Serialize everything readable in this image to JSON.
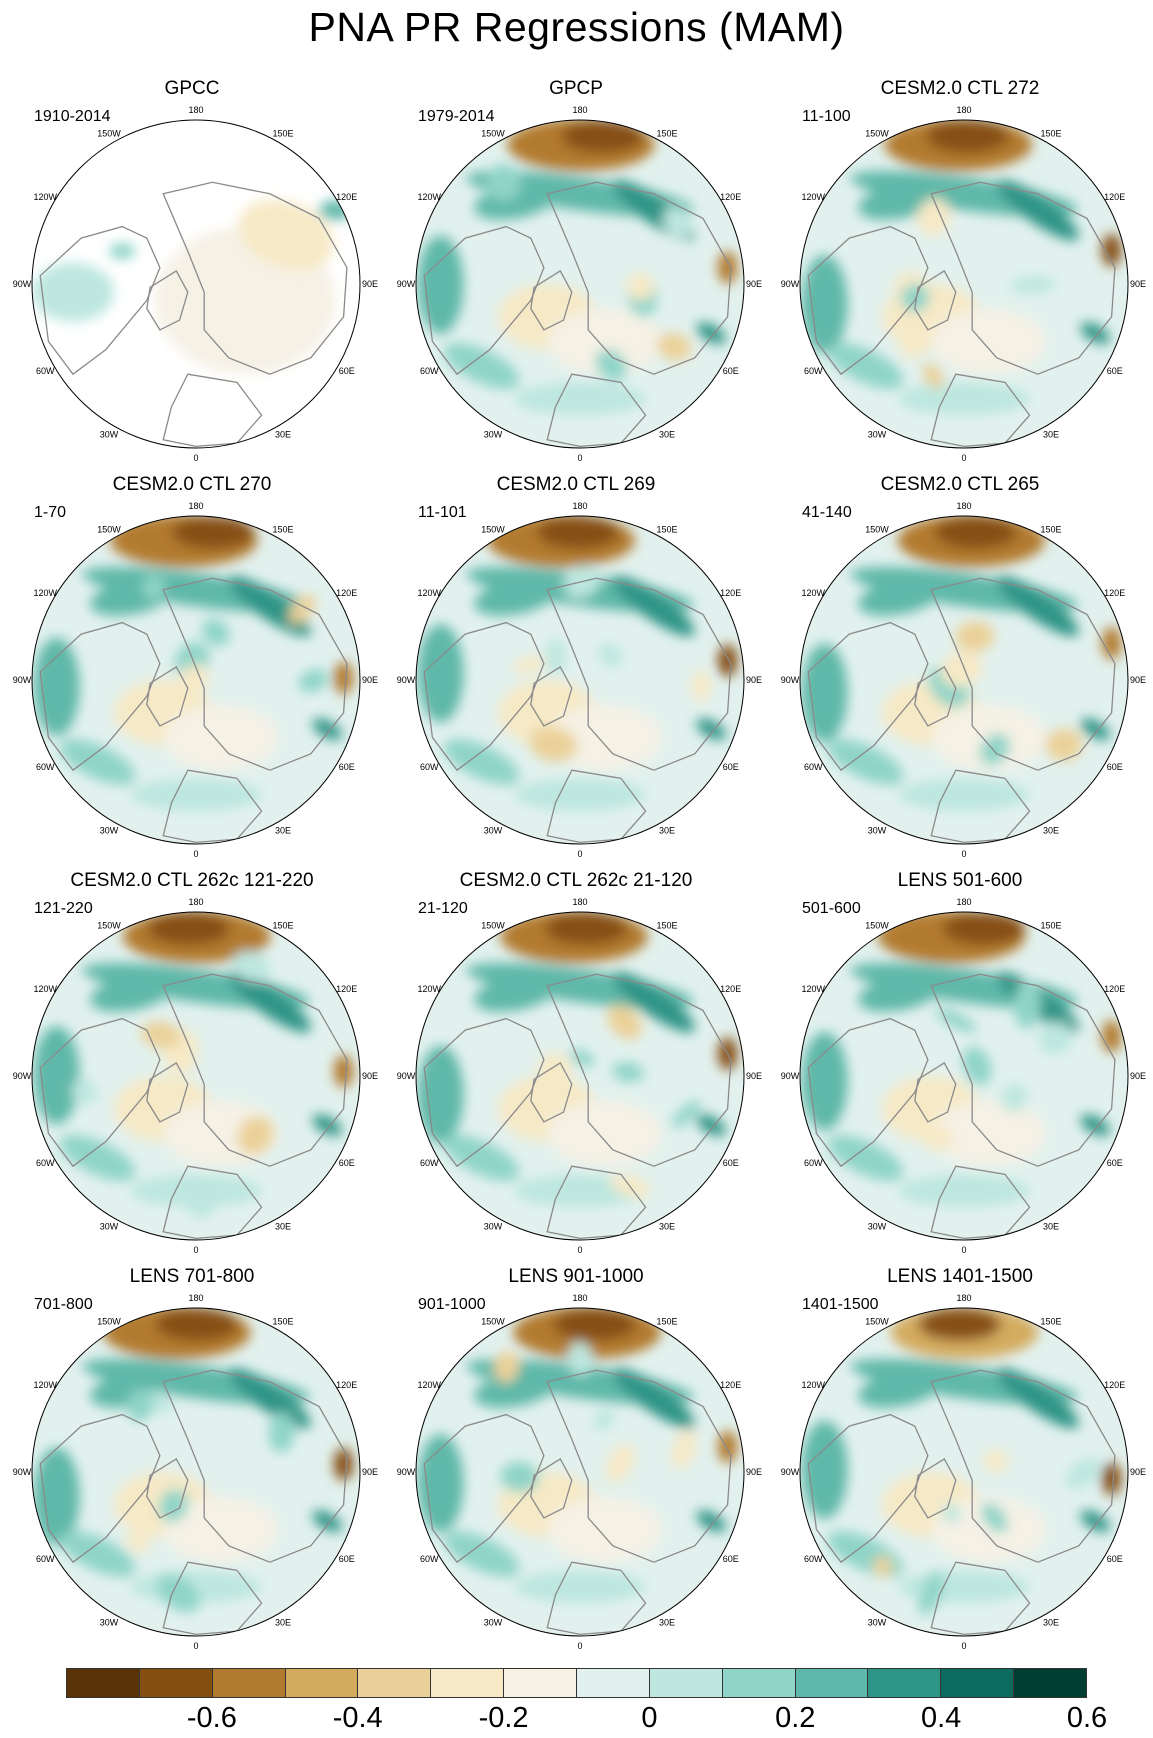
{
  "title": "PNA PR Regressions (MAM)",
  "panels": [
    {
      "title": "GPCC",
      "years": "1910-2014"
    },
    {
      "title": "GPCP",
      "years": "1979-2014"
    },
    {
      "title": "CESM2.0 CTL 272",
      "years": "11-100"
    },
    {
      "title": "CESM2.0 CTL 270",
      "years": "1-70"
    },
    {
      "title": "CESM2.0 CTL 269",
      "years": "11-101"
    },
    {
      "title": "CESM2.0 CTL 265",
      "years": "41-140"
    },
    {
      "title": "CESM2.0 CTL 262c 121-220",
      "years": "121-220"
    },
    {
      "title": "CESM2.0 CTL 262c 21-120",
      "years": "21-120"
    },
    {
      "title": "LENS 501-600",
      "years": "501-600"
    },
    {
      "title": "LENS 701-800",
      "years": "701-800"
    },
    {
      "title": "LENS 901-1000",
      "years": "901-1000"
    },
    {
      "title": "LENS 1401-1500",
      "years": "1401-1500"
    }
  ],
  "longitude_labels": [
    "180",
    "150E",
    "120E",
    "90E",
    "60E",
    "30E",
    "0",
    "30W",
    "60W",
    "90W",
    "120W",
    "150W"
  ],
  "colorbar": {
    "colors": [
      "#5a3408",
      "#864f12",
      "#b27a2e",
      "#d4ab5e",
      "#ebd199",
      "#f6e9c6",
      "#f5f1e5",
      "#e2f1ee",
      "#bde7df",
      "#8fd4c8",
      "#5eb8a9",
      "#2d9486",
      "#0b6b5f",
      "#003d33"
    ],
    "labels": [
      "-0.6",
      "-0.4",
      "-0.2",
      "0",
      "0.2",
      "0.4",
      "0.6"
    ]
  },
  "colors": {
    "coast": "#8a8a8a",
    "dry": "#b27a2e",
    "wet": "#2d9486"
  }
}
